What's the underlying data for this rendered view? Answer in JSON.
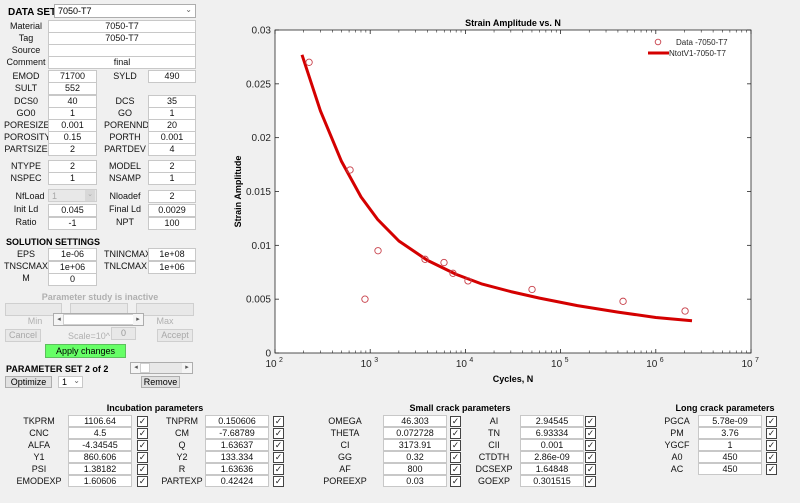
{
  "dataset": {
    "label": "DATA SET",
    "selected": "7050-T7",
    "material_label": "Material",
    "material": "7050-T7",
    "tag_label": "Tag",
    "tag": "7050-T7",
    "source_label": "Source",
    "source": "",
    "comment_label": "Comment",
    "comment": "final"
  },
  "props": [
    {
      "l1": "EMOD",
      "v1": "71700",
      "l2": "SYLD",
      "v2": "490"
    },
    {
      "l1": "SULT",
      "v1": "552",
      "l2": "",
      "v2": null
    },
    {
      "l1": "DCS0",
      "v1": "40",
      "l2": "DCS",
      "v2": "35"
    },
    {
      "l1": "GO0",
      "v1": "1",
      "l2": "GO",
      "v2": "1"
    },
    {
      "l1": "PORESIZE",
      "v1": "0.001",
      "l2": "PORENND",
      "v2": "20"
    },
    {
      "l1": "POROSITY",
      "v1": "0.15",
      "l2": "PORTH",
      "v2": "0.001"
    },
    {
      "l1": "PARTSIZE",
      "v1": "2",
      "l2": "PARTDEV",
      "v2": "4"
    }
  ],
  "model": [
    {
      "l1": "NTYPE",
      "v1": "2",
      "l2": "MODEL",
      "v2": "2"
    },
    {
      "l1": "NSPEC",
      "v1": "1",
      "l2": "NSAMP",
      "v2": "1"
    }
  ],
  "loading": {
    "nfload_label": "NfLoad",
    "nfload": "1",
    "nloadef_label": "Nloadef",
    "nloadef": "2",
    "initld_label": "Init Ld",
    "initld": "0.045",
    "finalld_label": "Final Ld",
    "finalld": "0.0029",
    "ratio_label": "Ratio",
    "ratio": "-1",
    "npt_label": "NPT",
    "npt": "100"
  },
  "solution": {
    "title": "SOLUTION SETTINGS",
    "eps_label": "EPS",
    "eps": "1e-06",
    "tnincmax_label": "TNINCMAX",
    "tnincmax": "1e+08",
    "tnscmax_label": "TNSCMAX",
    "tnscmax": "1e+06",
    "tnlcmax_label": "TNLCMAX",
    "tnlcmax": "1e+06",
    "m_label": "M",
    "m": "0"
  },
  "study": {
    "status": "Parameter study is inactive",
    "min_label": "Min",
    "max_label": "Max",
    "cancel": "Cancel",
    "accept": "Accept",
    "scale_label": "Scale=10^",
    "scale": "0",
    "apply": "Apply changes"
  },
  "paramset": {
    "title": "PARAMETER SET 2 of 2",
    "optimize": "Optimize",
    "opt_value": "1",
    "remove": "Remove"
  },
  "incubation": {
    "title": "Incubation parameters",
    "col1": [
      {
        "label": "TKPRM",
        "value": "1106.64"
      },
      {
        "label": "CNC",
        "value": "4.5"
      },
      {
        "label": "ALFA",
        "value": "-4.34545"
      },
      {
        "label": "Y1",
        "value": "860.606"
      },
      {
        "label": "PSI",
        "value": "1.38182"
      },
      {
        "label": "EMODEXP",
        "value": "1.60606"
      }
    ],
    "col2": [
      {
        "label": "TNPRM",
        "value": "0.150606"
      },
      {
        "label": "CM",
        "value": "-7.68789"
      },
      {
        "label": "Q",
        "value": "1.63637"
      },
      {
        "label": "Y2",
        "value": "133.334"
      },
      {
        "label": "R",
        "value": "1.63636"
      },
      {
        "label": "PARTEXP",
        "value": "0.42424"
      }
    ]
  },
  "smallcrack": {
    "title": "Small crack parameters",
    "col1": [
      {
        "label": "OMEGA",
        "value": "46.303"
      },
      {
        "label": "THETA",
        "value": "0.072728"
      },
      {
        "label": "CI",
        "value": "3173.91"
      },
      {
        "label": "GG",
        "value": "0.32"
      },
      {
        "label": "AF",
        "value": "800"
      },
      {
        "label": "POREEXP",
        "value": "0.03"
      }
    ],
    "col2": [
      {
        "label": "AI",
        "value": "2.94545"
      },
      {
        "label": "TN",
        "value": "6.93334"
      },
      {
        "label": "CII",
        "value": "0.001"
      },
      {
        "label": "CTDTH",
        "value": "2.86e-09"
      },
      {
        "label": "DCSEXP",
        "value": "1.64848"
      },
      {
        "label": "GOEXP",
        "value": "0.301515"
      }
    ]
  },
  "longcrack": {
    "title": "Long crack parameters",
    "col1": [
      {
        "label": "PGCA",
        "value": "5.78e-09"
      },
      {
        "label": "PM",
        "value": "3.76"
      },
      {
        "label": "YGCF",
        "value": "1"
      },
      {
        "label": "A0",
        "value": "450"
      },
      {
        "label": "AC",
        "value": "450"
      }
    ]
  },
  "check_glyph": "✓",
  "chart_data": {
    "type": "scatter",
    "title": "Strain Amplitude vs. N",
    "xlabel": "Cycles, N",
    "ylabel": "Strain Amplitude",
    "xscale": "log",
    "xlim": [
      100,
      10000000
    ],
    "ylim": [
      0,
      0.03
    ],
    "xticks": [
      "10^2",
      "10^3",
      "10^4",
      "10^5",
      "10^6",
      "10^7"
    ],
    "yticks": [
      "0",
      "0.005",
      "0.01",
      "0.015",
      "0.02",
      "0.025",
      "0.03"
    ],
    "legend": [
      "Data -7050-T7",
      "NtotV1-7050-T7"
    ],
    "legend_position": "top-right",
    "series": [
      {
        "name": "Data -7050-T7",
        "kind": "markers",
        "color": "#c8414b",
        "x": [
          228,
          614,
          881,
          1208,
          3770,
          5960,
          7410,
          10650,
          50100,
          453000,
          2030000
        ],
        "y": [
          0.027,
          0.017,
          0.005,
          0.0095,
          0.0087,
          0.0084,
          0.0074,
          0.0067,
          0.0059,
          0.0048,
          0.0039
        ]
      },
      {
        "name": "NtotV1-7050-T7",
        "kind": "line",
        "color": "#d40000",
        "x": [
          192,
          300,
          500,
          800,
          1200,
          2000,
          4000,
          8000,
          15000,
          30000,
          60000,
          150000,
          400000,
          1000000,
          2400000
        ],
        "y": [
          0.0277,
          0.0225,
          0.0178,
          0.0145,
          0.0124,
          0.0104,
          0.0086,
          0.0073,
          0.0064,
          0.0057,
          0.0051,
          0.0044,
          0.0038,
          0.0033,
          0.003
        ]
      }
    ],
    "grid": false
  }
}
